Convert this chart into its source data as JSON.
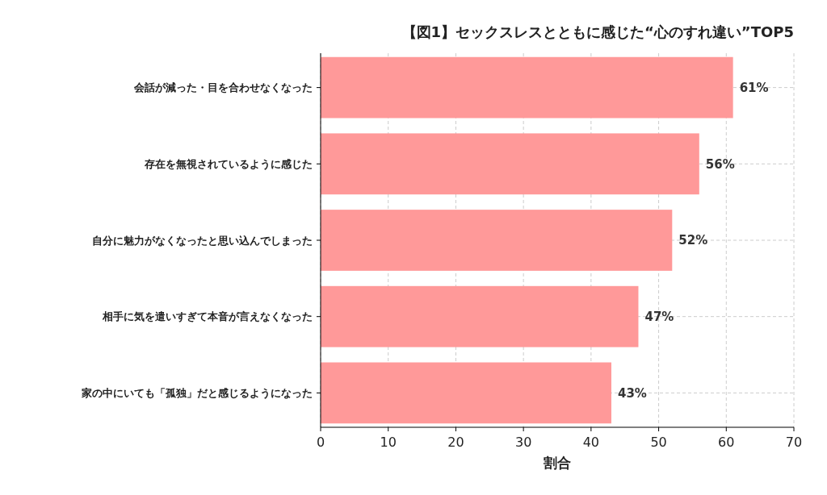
{
  "chart_data": {
    "type": "bar",
    "orientation": "horizontal",
    "title": "【図1】セックスレスとともに感じた“心のすれ違い”TOP5",
    "xlabel": "割合",
    "categories": [
      "会話が減った・目を合わせなくなった",
      "存在を無視されているように感じた",
      "自分に魅力がなくなったと思い込んでしまった",
      "相手に気を遣いすぎて本音が言えなくなった",
      "家の中にいても「孤独」だと感じるようになった"
    ],
    "values": [
      61,
      56,
      52,
      47,
      43
    ],
    "value_labels": [
      "61%",
      "56%",
      "52%",
      "47%",
      "43%"
    ],
    "color": "#ff9999",
    "xlim": [
      0,
      70
    ],
    "xticks": [
      0,
      10,
      20,
      30,
      40,
      50,
      60,
      70
    ],
    "grid": true
  }
}
